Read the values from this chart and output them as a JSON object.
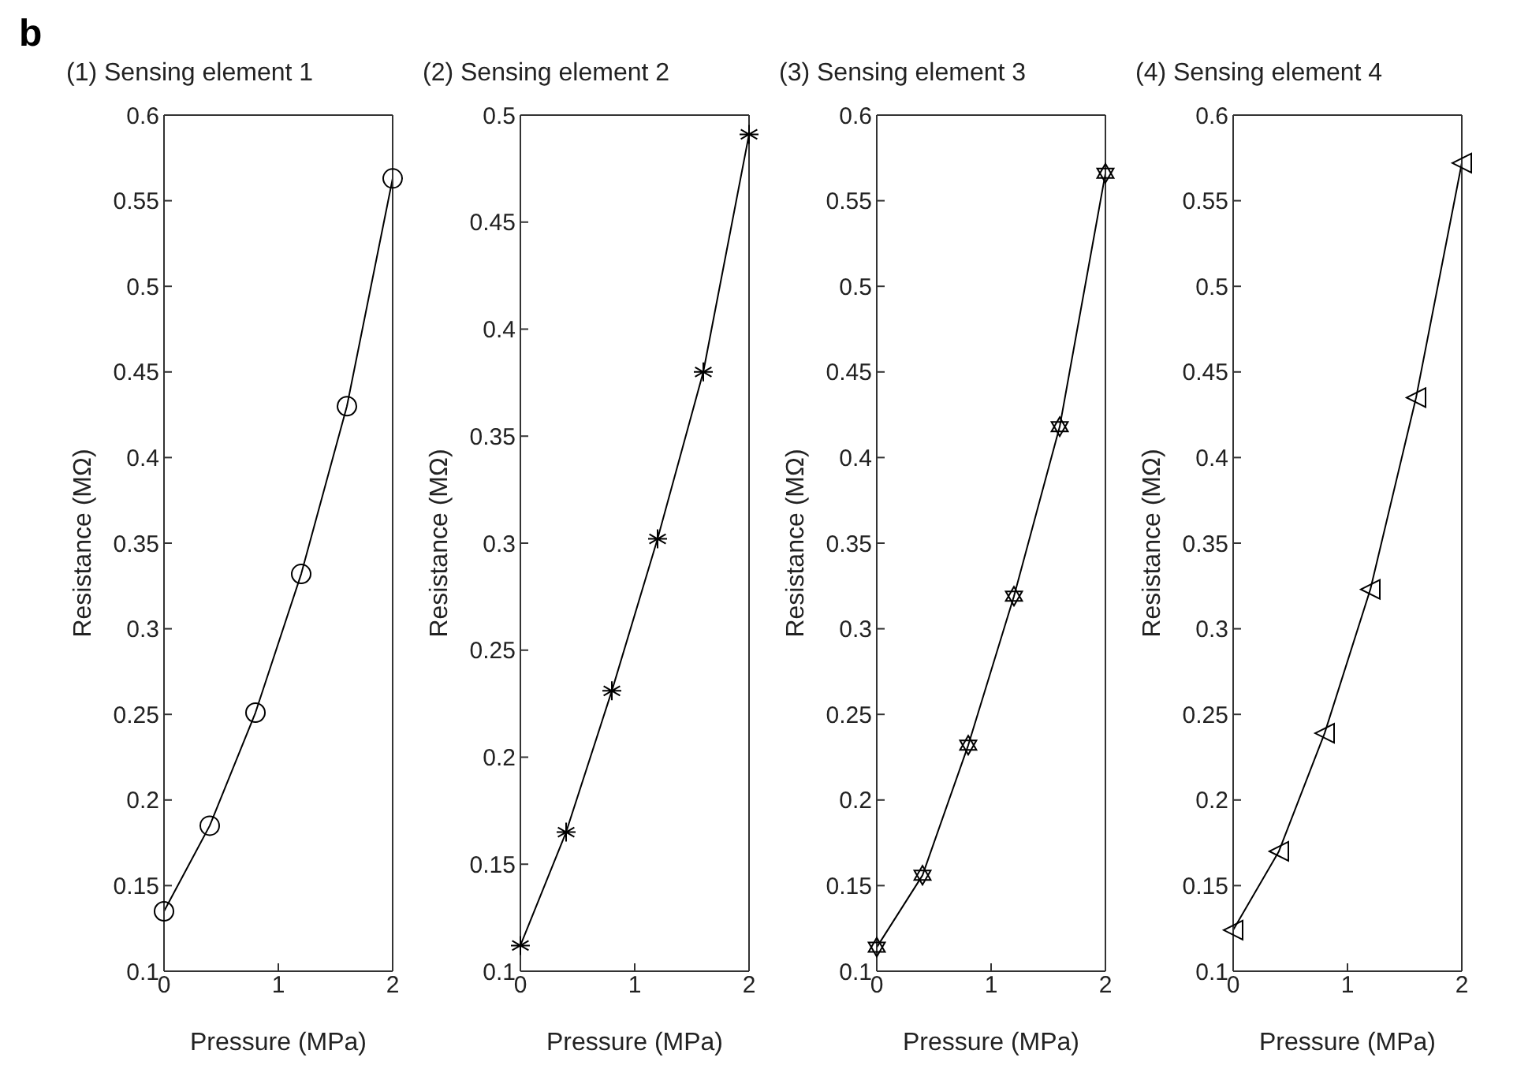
{
  "chart_data": [
    {
      "type": "line",
      "title": "(1) Sensing element 1",
      "annotations": [
        "b"
      ],
      "xlabel": "Pressure (MPa)",
      "ylabel": "Resistance (MΩ)",
      "x": [
        0,
        0.4,
        0.8,
        1.2,
        1.6,
        2
      ],
      "series": [
        {
          "color": "#000000",
          "values": [
            0.135,
            0.185,
            0.251,
            0.332,
            0.43,
            0.563
          ]
        }
      ],
      "marker": "circle",
      "xlim": [
        0,
        2
      ],
      "xticks": [
        0,
        1,
        2
      ],
      "ylim": [
        0.1,
        0.6
      ],
      "yticks": [
        0.1,
        0.15,
        0.2,
        0.25,
        0.3,
        0.35,
        0.4,
        0.45,
        0.5,
        0.55,
        0.6
      ],
      "grid": false,
      "legend": false
    },
    {
      "type": "line",
      "title": "(2) Sensing element 2",
      "xlabel": "Pressure (MPa)",
      "ylabel": "Resistance (MΩ)",
      "x": [
        0,
        0.4,
        0.8,
        1.2,
        1.6,
        2
      ],
      "series": [
        {
          "color": "#000000",
          "values": [
            0.112,
            0.165,
            0.231,
            0.302,
            0.38,
            0.491
          ]
        }
      ],
      "marker": "cross",
      "xlim": [
        0,
        2
      ],
      "xticks": [
        0,
        1,
        2
      ],
      "ylim": [
        0.1,
        0.5
      ],
      "yticks": [
        0.1,
        0.15,
        0.2,
        0.25,
        0.3,
        0.35,
        0.4,
        0.45,
        0.5
      ],
      "grid": false,
      "legend": false
    },
    {
      "type": "line",
      "title": "(3) Sensing element 3",
      "xlabel": "Pressure (MPa)",
      "ylabel": "Resistance (MΩ)",
      "x": [
        0,
        0.4,
        0.8,
        1.2,
        1.6,
        2
      ],
      "series": [
        {
          "color": "#000000",
          "values": [
            0.114,
            0.156,
            0.232,
            0.319,
            0.418,
            0.566
          ]
        }
      ],
      "marker": "star",
      "xlim": [
        0,
        2
      ],
      "xticks": [
        0,
        1,
        2
      ],
      "ylim": [
        0.1,
        0.6
      ],
      "yticks": [
        0.1,
        0.15,
        0.2,
        0.25,
        0.3,
        0.35,
        0.4,
        0.45,
        0.5,
        0.55,
        0.6
      ],
      "grid": false,
      "legend": false
    },
    {
      "type": "line",
      "title": "(4) Sensing element 4",
      "xlabel": "Pressure (MPa)",
      "ylabel": "Resistance (MΩ)",
      "x": [
        0,
        0.4,
        0.8,
        1.2,
        1.6,
        2
      ],
      "series": [
        {
          "color": "#000000",
          "values": [
            0.124,
            0.17,
            0.239,
            0.323,
            0.435,
            0.572
          ]
        }
      ],
      "marker": "triangle",
      "xlim": [
        0,
        2
      ],
      "xticks": [
        0,
        1,
        2
      ],
      "ylim": [
        0.1,
        0.6
      ],
      "yticks": [
        0.1,
        0.15,
        0.2,
        0.25,
        0.3,
        0.35,
        0.4,
        0.45,
        0.5,
        0.55,
        0.6
      ],
      "grid": false,
      "legend": false
    }
  ]
}
